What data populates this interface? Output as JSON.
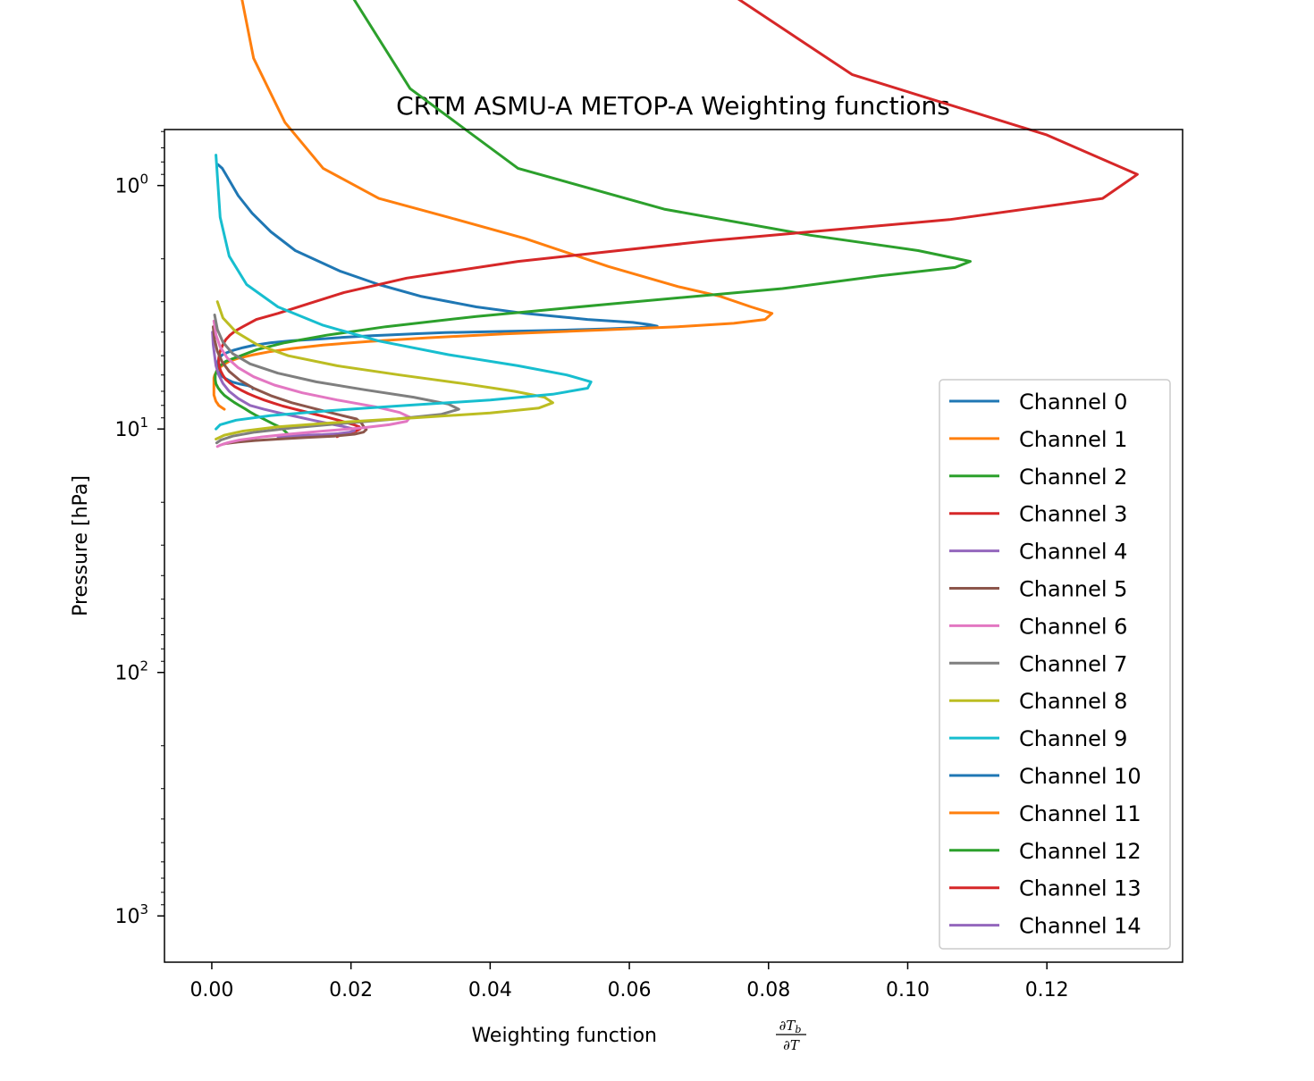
{
  "chart_data": {
    "type": "line",
    "title": "CRTM ASMU-A METOP-A Weighting functions",
    "xlabel": "Weighting function",
    "xlabel_math": "∂T_b / ∂T",
    "ylabel": "Pressure [hPa]",
    "xlim": [
      -0.0068,
      0.1395
    ],
    "ylim_log10": [
      -0.23,
      3.19
    ],
    "yscale": "log",
    "y_inverted": true,
    "grid": false,
    "legend_position": "right",
    "x_ticks": [
      "0.00",
      "0.02",
      "0.04",
      "0.06",
      "0.08",
      "0.10",
      "0.12"
    ],
    "x_tick_values": [
      0,
      0.02,
      0.04,
      0.06,
      0.08,
      0.1,
      0.12
    ],
    "y_ticks": [
      {
        "base": "10",
        "exp": "0",
        "value": 1
      },
      {
        "base": "10",
        "exp": "1",
        "value": 10
      },
      {
        "base": "10",
        "exp": "2",
        "value": 100
      },
      {
        "base": "10",
        "exp": "3",
        "value": 1000
      }
    ],
    "series": [
      {
        "name": "Channel 0",
        "color": "#1f77b4",
        "x": [
          0.0009,
          0.0015,
          0.0025,
          0.0038,
          0.0058,
          0.0085,
          0.012,
          0.0185,
          0.024,
          0.03,
          0.038,
          0.045,
          0.054,
          0.0605,
          0.0628,
          0.064,
          0.0615,
          0.0568,
          0.0495,
          0.04,
          0.0335,
          0.0295,
          0.026,
          0.023,
          0.019,
          0.0155,
          0.0115,
          0.0085,
          0.006,
          0.0045,
          0.0032,
          0.0022,
          0.0015,
          0.0012,
          0.001,
          0.0009,
          0.0009,
          0.0009,
          0.0009,
          0.001,
          0.0011,
          0.0012,
          0.0013,
          0.0016,
          0.002,
          0.0025,
          0.003,
          0.0039,
          0.0052,
          0.0058,
          0.0059
        ],
        "y": [
          0.82,
          0.85,
          0.95,
          1.1,
          1.3,
          1.55,
          1.85,
          2.25,
          2.55,
          2.85,
          3.15,
          3.35,
          3.55,
          3.65,
          3.72,
          3.78,
          3.83,
          3.88,
          3.93,
          3.98,
          4.02,
          4.06,
          4.1,
          4.14,
          4.2,
          4.27,
          4.34,
          4.42,
          4.53,
          4.63,
          4.74,
          4.85,
          4.96,
          5.06,
          5.16,
          5.26,
          5.37,
          5.48,
          5.58,
          5.69,
          5.79,
          5.9,
          6.0,
          6.11,
          6.21,
          6.32,
          6.42,
          6.52,
          6.63,
          6.74,
          6.84
        ]
      },
      {
        "name": "Channel 1",
        "color": "#ff7f0e",
        "x": [
          0.0035,
          0.006,
          0.0105,
          0.016,
          0.024,
          0.034,
          0.045,
          0.057,
          0.067,
          0.073,
          0.0775,
          0.0805,
          0.0795,
          0.075,
          0.067,
          0.056,
          0.042,
          0.031,
          0.0225,
          0.016,
          0.0115,
          0.0082,
          0.0058,
          0.0038,
          0.0025,
          0.0018,
          0.0012,
          0.0009,
          0.0006,
          0.0004,
          0.0003,
          0.0003,
          0.0003,
          0.0003,
          0.0003,
          0.0003,
          0.0003,
          0.0003,
          0.0004,
          0.0005,
          0.0006,
          0.0008,
          0.001,
          0.0014,
          0.0018
        ],
        "y": [
          0.13,
          0.3,
          0.55,
          0.85,
          1.13,
          1.35,
          1.65,
          2.15,
          2.6,
          2.85,
          3.15,
          3.35,
          3.55,
          3.68,
          3.8,
          3.92,
          4.07,
          4.22,
          4.37,
          4.52,
          4.67,
          4.82,
          4.97,
          5.12,
          5.27,
          5.42,
          5.57,
          5.72,
          5.87,
          6.02,
          6.17,
          6.32,
          6.47,
          6.62,
          6.8,
          6.95,
          7.1,
          7.25,
          7.4,
          7.55,
          7.7,
          7.85,
          8.0,
          8.15,
          8.3
        ]
      },
      {
        "name": "Channel 2",
        "color": "#2ca02c",
        "x": [
          0.017,
          0.0285,
          0.044,
          0.065,
          0.086,
          0.1015,
          0.109,
          0.1068,
          0.096,
          0.082,
          0.058,
          0.038,
          0.025,
          0.0165,
          0.0105,
          0.0065,
          0.004,
          0.002,
          0.0011,
          0.0007,
          0.0005,
          0.0005,
          0.0006,
          0.0009,
          0.0013,
          0.0018,
          0.0025,
          0.0032,
          0.004,
          0.0048,
          0.0055,
          0.0063,
          0.0072,
          0.008,
          0.0088,
          0.0096,
          0.0102,
          0.0106,
          0.011,
          0.012
        ],
        "y": [
          0.12,
          0.4,
          0.85,
          1.25,
          1.6,
          1.85,
          2.05,
          2.17,
          2.35,
          2.65,
          3.05,
          3.45,
          3.8,
          4.12,
          4.42,
          4.72,
          5.02,
          5.27,
          5.52,
          5.77,
          6.02,
          6.27,
          6.52,
          6.77,
          7.02,
          7.27,
          7.52,
          7.77,
          8.02,
          8.27,
          8.52,
          8.77,
          9.02,
          9.27,
          9.52,
          9.77,
          10.02,
          10.27,
          10.52,
          10.75
        ]
      },
      {
        "name": "Channel 3",
        "color": "#d62728",
        "x": [
          0.0655,
          0.092,
          0.12,
          0.133,
          0.128,
          0.106,
          0.072,
          0.044,
          0.028,
          0.019,
          0.014,
          0.0095,
          0.0064,
          0.0046,
          0.0034,
          0.0026,
          0.002,
          0.0016,
          0.0013,
          0.0011,
          0.001,
          0.001,
          0.0011,
          0.0013,
          0.0016,
          0.002,
          0.0026,
          0.0033,
          0.0042,
          0.0052,
          0.0063,
          0.0075,
          0.0088,
          0.0102,
          0.0118,
          0.0135,
          0.015,
          0.0166,
          0.018,
          0.0193,
          0.0205,
          0.0212,
          0.0213,
          0.0207,
          0.0195,
          0.0186,
          0.018
        ],
        "y": [
          0.11,
          0.35,
          0.62,
          0.9,
          1.13,
          1.38,
          1.68,
          2.05,
          2.4,
          2.75,
          3.05,
          3.35,
          3.55,
          3.78,
          3.95,
          4.12,
          4.3,
          4.5,
          4.7,
          4.9,
          5.12,
          5.35,
          5.57,
          5.8,
          6.02,
          6.25,
          6.47,
          6.7,
          6.92,
          7.15,
          7.37,
          7.6,
          7.82,
          8.05,
          8.27,
          8.5,
          8.72,
          8.95,
          9.17,
          9.4,
          9.62,
          9.8,
          10.0,
          10.2,
          10.4,
          10.55,
          10.75
        ]
      },
      {
        "name": "Channel 4",
        "color": "#9467bd",
        "x": [
          0.0001,
          0.0002,
          0.0004,
          0.0006,
          0.001,
          0.0016,
          0.0025,
          0.0038,
          0.0055,
          0.0075,
          0.0098,
          0.0122,
          0.0145,
          0.0168,
          0.0188,
          0.0201,
          0.0205,
          0.0198,
          0.0182,
          0.0159,
          0.0131,
          0.0105,
          0.0095
        ],
        "y": [
          4.0,
          4.5,
          5.0,
          5.5,
          6.0,
          6.5,
          7.0,
          7.5,
          8.0,
          8.3,
          8.6,
          8.9,
          9.2,
          9.5,
          9.75,
          9.95,
          10.15,
          10.3,
          10.45,
          10.55,
          10.62,
          10.7,
          10.75
        ]
      },
      {
        "name": "Channel 5",
        "color": "#8c564b",
        "x": [
          0.0002,
          0.0004,
          0.0008,
          0.0015,
          0.0025,
          0.004,
          0.006,
          0.0085,
          0.0115,
          0.0148,
          0.018,
          0.0208,
          0.0215,
          0.0218,
          0.0222,
          0.0218,
          0.0205,
          0.0175,
          0.0135,
          0.0095,
          0.0062,
          0.0038,
          0.0022,
          0.0016
        ],
        "y": [
          3.8,
          4.3,
          4.8,
          5.3,
          5.8,
          6.3,
          6.8,
          7.3,
          7.8,
          8.25,
          8.7,
          9.1,
          9.45,
          9.75,
          10.05,
          10.3,
          10.5,
          10.7,
          10.85,
          11.0,
          11.15,
          11.3,
          11.45,
          11.55
        ]
      },
      {
        "name": "Channel 6",
        "color": "#e377c2",
        "x": [
          0.0003,
          0.0006,
          0.0012,
          0.0022,
          0.0038,
          0.006,
          0.009,
          0.013,
          0.018,
          0.0235,
          0.027,
          0.0285,
          0.028,
          0.0255,
          0.0215,
          0.016,
          0.011,
          0.007,
          0.004,
          0.0022,
          0.0012,
          0.0008
        ],
        "y": [
          3.6,
          4.1,
          4.6,
          5.1,
          5.6,
          6.1,
          6.6,
          7.1,
          7.6,
          8.1,
          8.55,
          8.95,
          9.3,
          9.6,
          9.9,
          10.2,
          10.5,
          10.8,
          11.1,
          11.4,
          11.65,
          11.8
        ]
      },
      {
        "name": "Channel 7",
        "color": "#7f7f7f",
        "x": [
          0.0004,
          0.0008,
          0.0016,
          0.003,
          0.0055,
          0.0095,
          0.015,
          0.022,
          0.029,
          0.034,
          0.0355,
          0.033,
          0.0265,
          0.0185,
          0.0115,
          0.0062,
          0.003,
          0.0013,
          0.0007
        ],
        "y": [
          3.4,
          3.9,
          4.4,
          4.9,
          5.4,
          5.9,
          6.4,
          6.9,
          7.4,
          7.9,
          8.3,
          8.7,
          9.1,
          9.5,
          9.9,
          10.3,
          10.7,
          11.1,
          11.4
        ]
      },
      {
        "name": "Channel 8",
        "color": "#bcbd22",
        "x": [
          0.0008,
          0.0016,
          0.0035,
          0.0065,
          0.011,
          0.018,
          0.027,
          0.036,
          0.0435,
          0.0478,
          0.049,
          0.047,
          0.04,
          0.029,
          0.018,
          0.0095,
          0.0045,
          0.0018,
          0.0006
        ],
        "y": [
          3.0,
          3.5,
          4.0,
          4.5,
          5.0,
          5.5,
          6.0,
          6.5,
          7.0,
          7.4,
          7.8,
          8.2,
          8.6,
          9.0,
          9.4,
          9.8,
          10.2,
          10.6,
          11.0
        ]
      },
      {
        "name": "Channel 9",
        "color": "#17becf",
        "x": [
          0.0006,
          0.0012,
          0.0025,
          0.005,
          0.0095,
          0.016,
          0.024,
          0.034,
          0.044,
          0.051,
          0.0545,
          0.054,
          0.049,
          0.04,
          0.028,
          0.017,
          0.0085,
          0.0035,
          0.0012,
          0.0006
        ],
        "y": [
          0.75,
          1.35,
          1.95,
          2.55,
          3.15,
          3.75,
          4.35,
          4.95,
          5.5,
          6.0,
          6.4,
          6.8,
          7.2,
          7.6,
          8.0,
          8.4,
          8.8,
          9.2,
          9.6,
          10.0
        ]
      }
    ]
  },
  "legend_entries": [
    {
      "label": "Channel 0",
      "color": "#1f77b4"
    },
    {
      "label": "Channel 1",
      "color": "#ff7f0e"
    },
    {
      "label": "Channel 2",
      "color": "#2ca02c"
    },
    {
      "label": "Channel 3",
      "color": "#d62728"
    },
    {
      "label": "Channel 4",
      "color": "#9467bd"
    },
    {
      "label": "Channel 5",
      "color": "#8c564b"
    },
    {
      "label": "Channel 6",
      "color": "#e377c2"
    },
    {
      "label": "Channel 7",
      "color": "#7f7f7f"
    },
    {
      "label": "Channel 8",
      "color": "#bcbd22"
    },
    {
      "label": "Channel 9",
      "color": "#17becf"
    },
    {
      "label": "Channel 10",
      "color": "#1f77b4"
    },
    {
      "label": "Channel 11",
      "color": "#ff7f0e"
    },
    {
      "label": "Channel 12",
      "color": "#2ca02c"
    },
    {
      "label": "Channel 13",
      "color": "#d62728"
    },
    {
      "label": "Channel 14",
      "color": "#9467bd"
    }
  ]
}
